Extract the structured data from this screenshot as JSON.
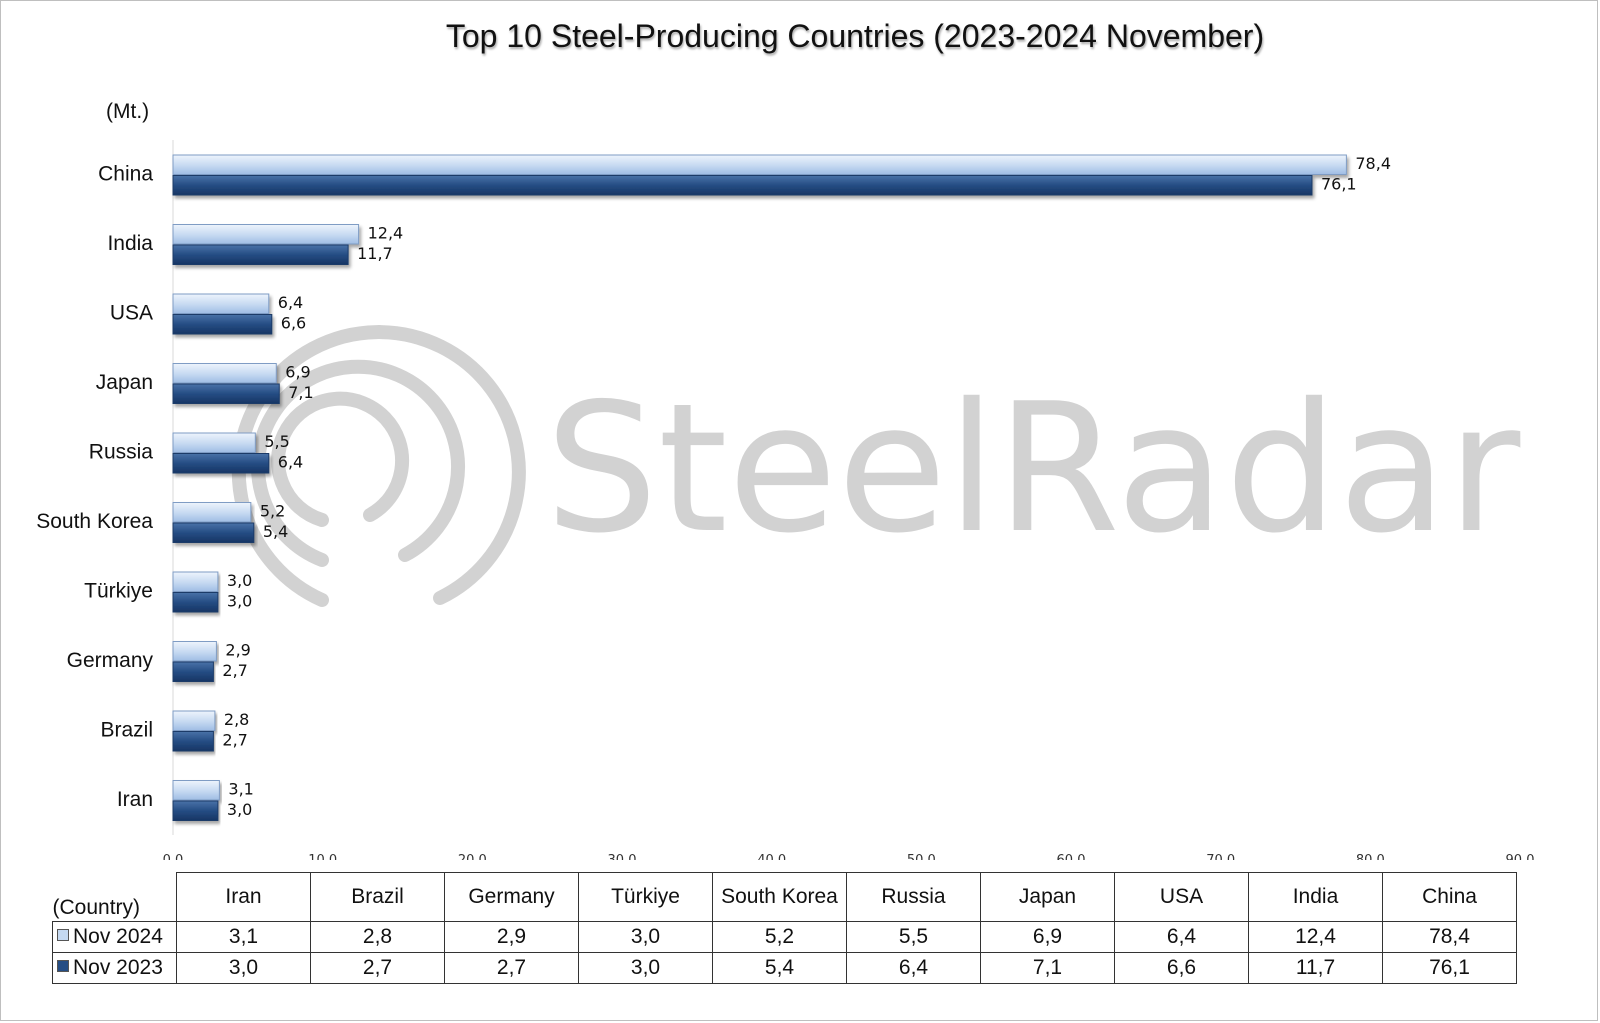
{
  "chart_data": {
    "type": "bar",
    "orientation": "horizontal",
    "title": "Top 10 Steel-Producing Countries (2023-2024 November)",
    "unit_label": "(Mt.)",
    "xlim": [
      0,
      90
    ],
    "x_ticks": [
      "0,0",
      "10,0",
      "20,0",
      "30,0",
      "40,0",
      "50,0",
      "60,0",
      "70,0",
      "80,0",
      "90,0"
    ],
    "categories": [
      "China",
      "India",
      "USA",
      "Japan",
      "Russia",
      "South Korea",
      "Türkiye",
      "Germany",
      "Brazil",
      "Iran"
    ],
    "series": [
      {
        "name": "Nov 2024",
        "color": "#c5d9f1",
        "values": [
          78.4,
          12.4,
          6.4,
          6.9,
          5.5,
          5.2,
          3.0,
          2.9,
          2.8,
          3.1
        ],
        "labels": [
          "78,4",
          "12,4",
          "6,4",
          "6,9",
          "5,5",
          "5,2",
          "3,0",
          "2,9",
          "2,8",
          "3,1"
        ]
      },
      {
        "name": "Nov 2023",
        "color": "#254d84",
        "values": [
          76.1,
          11.7,
          6.6,
          7.1,
          6.4,
          5.4,
          3.0,
          2.7,
          2.7,
          3.0
        ],
        "labels": [
          "76,1",
          "11,7",
          "6,6",
          "7,1",
          "6,4",
          "5,4",
          "3,0",
          "2,7",
          "2,7",
          "3,0"
        ]
      }
    ],
    "grid": false,
    "legend": "in data table"
  },
  "table": {
    "corner_label": "(Country)",
    "columns": [
      "Iran",
      "Brazil",
      "Germany",
      "Türkiye",
      "South Korea",
      "Russia",
      "Japan",
      "USA",
      "India",
      "China"
    ],
    "rows": [
      {
        "name": "Nov 2024",
        "color": "#c5d9f1",
        "values": [
          "3,1",
          "2,8",
          "2,9",
          "3,0",
          "5,2",
          "5,5",
          "6,9",
          "6,4",
          "12,4",
          "78,4"
        ]
      },
      {
        "name": "Nov 2023",
        "color": "#254d84",
        "values": [
          "3,0",
          "2,7",
          "2,7",
          "3,0",
          "5,4",
          "6,4",
          "7,1",
          "6,6",
          "11,7",
          "76,1"
        ]
      }
    ]
  },
  "watermark": {
    "text": "SteelRadar",
    "icon": "radar-arcs-icon"
  }
}
